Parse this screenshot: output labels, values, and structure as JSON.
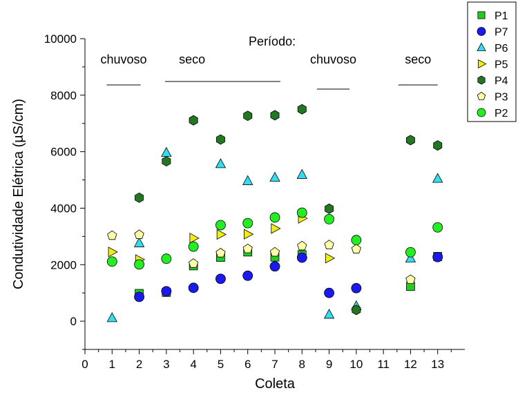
{
  "chart_data": {
    "type": "scatter",
    "xlabel": "Coleta",
    "ylabel": "Condutividade Elétrica (µS/cm)",
    "xlim": [
      0,
      14
    ],
    "ylim": [
      -1000,
      10000
    ],
    "xticks": [
      0,
      1,
      2,
      3,
      4,
      5,
      6,
      7,
      8,
      9,
      10,
      11,
      12,
      13
    ],
    "yticks": [
      0,
      2000,
      4000,
      6000,
      8000,
      10000
    ],
    "grid": false,
    "legend_position": "top-right",
    "period_label": "Período:",
    "periods": [
      {
        "label": "chuvoso",
        "from": 0.8,
        "to": 2.05
      },
      {
        "label": "seco",
        "from": 2.95,
        "to": 7.2
      },
      {
        "label": "chuvoso",
        "from": 8.55,
        "to": 9.75
      },
      {
        "label": "seco",
        "from": 11.55,
        "to": 13.0
      }
    ],
    "series": [
      {
        "name": "P1",
        "marker": "square",
        "color": "#22cc22",
        "x": [
          2,
          3,
          4,
          5,
          6,
          7,
          8,
          12,
          13
        ],
        "y": [
          980,
          1020,
          1960,
          2260,
          2450,
          2270,
          2350,
          1230,
          2290
        ]
      },
      {
        "name": "P7",
        "marker": "circle",
        "color": "#1a1aee",
        "x": [
          2,
          3,
          4,
          5,
          6,
          7,
          8,
          9,
          10,
          13
        ],
        "y": [
          860,
          1060,
          1180,
          1500,
          1610,
          1940,
          2250,
          1000,
          1170,
          2270
        ]
      },
      {
        "name": "P6",
        "marker": "triangle-up",
        "color": "#33ddee",
        "x": [
          1,
          2,
          3,
          5,
          6,
          7,
          8,
          9,
          10,
          12,
          13
        ],
        "y": [
          110,
          2760,
          5960,
          5560,
          4960,
          5080,
          5180,
          230,
          530,
          2220,
          5040
        ]
      },
      {
        "name": "P5",
        "marker": "triangle-right",
        "color": "#eeee11",
        "x": [
          1,
          2,
          4,
          5,
          6,
          7,
          8,
          9
        ],
        "y": [
          2450,
          2180,
          2940,
          3070,
          3080,
          3280,
          3640,
          2230
        ]
      },
      {
        "name": "P4",
        "marker": "hexagon",
        "color": "#227722",
        "x": [
          2,
          3,
          4,
          5,
          6,
          7,
          8,
          9,
          10,
          12,
          13
        ],
        "y": [
          4370,
          5660,
          7110,
          6430,
          7270,
          7290,
          7500,
          3980,
          400,
          6410,
          6220
        ]
      },
      {
        "name": "P3",
        "marker": "pentagon",
        "color": "#ffffaa",
        "x": [
          1,
          2,
          3,
          4,
          5,
          6,
          7,
          8,
          9,
          10,
          12
        ],
        "y": [
          3030,
          3060,
          2200,
          2040,
          2410,
          2560,
          2440,
          2660,
          2700,
          2550,
          1470
        ]
      },
      {
        "name": "P2",
        "marker": "circle",
        "color": "#22ee22",
        "x": [
          1,
          2,
          3,
          4,
          5,
          6,
          7,
          8,
          9,
          10,
          12,
          13
        ],
        "y": [
          2110,
          2010,
          2210,
          2640,
          3400,
          3470,
          3670,
          3840,
          3610,
          2870,
          2440,
          3320
        ]
      }
    ]
  }
}
